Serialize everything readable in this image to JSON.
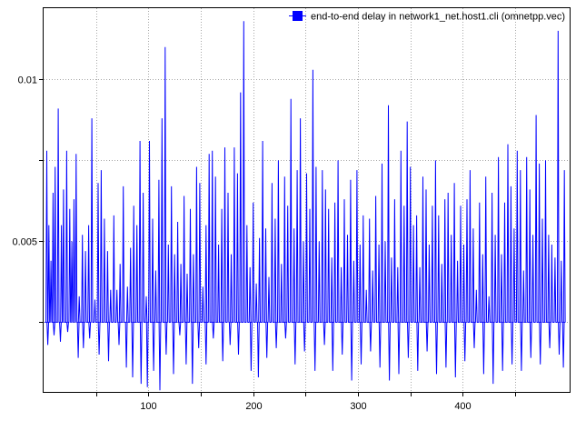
{
  "chart_data": {
    "type": "line",
    "title": "",
    "xlabel": "",
    "ylabel": "",
    "xlim": [
      0,
      502
    ],
    "ylim": [
      0.00035,
      0.0122
    ],
    "grid": true,
    "legend_position": "top-right",
    "x_ticks": [
      {
        "value": 50,
        "label": ""
      },
      {
        "value": 100,
        "label": "100"
      },
      {
        "value": 150,
        "label": ""
      },
      {
        "value": 200,
        "label": "200"
      },
      {
        "value": 250,
        "label": ""
      },
      {
        "value": 300,
        "label": "300"
      },
      {
        "value": 350,
        "label": ""
      },
      {
        "value": 400,
        "label": "400"
      },
      {
        "value": 450,
        "label": ""
      }
    ],
    "y_ticks": [
      {
        "value": 0.0025,
        "label": ""
      },
      {
        "value": 0.005,
        "label": "0.005"
      },
      {
        "value": 0.0075,
        "label": ""
      },
      {
        "value": 0.01,
        "label": "0.01"
      }
    ],
    "series": [
      {
        "name": "end-to-end delay in network1_net.host1.cli (omnetpp.vec)",
        "color": "#0000ff",
        "baseline": 0.0025,
        "x_start": 1,
        "x_end": 498,
        "spikes": [
          [
            3,
            0.0078
          ],
          [
            5,
            0.0055
          ],
          [
            7,
            0.0044
          ],
          [
            9,
            0.0065
          ],
          [
            11,
            0.0073
          ],
          [
            14,
            0.0091
          ],
          [
            17,
            0.0055
          ],
          [
            19,
            0.0066
          ],
          [
            22,
            0.0078
          ],
          [
            25,
            0.006
          ],
          [
            27,
            0.005
          ],
          [
            29,
            0.0063
          ],
          [
            31,
            0.0077
          ],
          [
            34,
            0.0033
          ],
          [
            37,
            0.0052
          ],
          [
            40,
            0.0047
          ],
          [
            43,
            0.0055
          ],
          [
            46,
            0.0088
          ],
          [
            49,
            0.0032
          ],
          [
            52,
            0.0068
          ],
          [
            55,
            0.0072
          ],
          [
            58,
            0.0057
          ],
          [
            61,
            0.0047
          ],
          [
            64,
            0.0035
          ],
          [
            67,
            0.0058
          ],
          [
            70,
            0.0035
          ],
          [
            73,
            0.0043
          ],
          [
            76,
            0.0067
          ],
          [
            80,
            0.0036
          ],
          [
            83,
            0.0048
          ],
          [
            86,
            0.0061
          ],
          [
            89,
            0.0055
          ],
          [
            92,
            0.0081
          ],
          [
            95,
            0.0065
          ],
          [
            98,
            0.0033
          ],
          [
            101,
            0.0081
          ],
          [
            104,
            0.0057
          ],
          [
            107,
            0.0041
          ],
          [
            110,
            0.0069
          ],
          [
            113,
            0.0088
          ],
          [
            116,
            0.011
          ],
          [
            119,
            0.0049
          ],
          [
            122,
            0.0067
          ],
          [
            125,
            0.0046
          ],
          [
            128,
            0.0056
          ],
          [
            131,
            0.0043
          ],
          [
            134,
            0.0064
          ],
          [
            137,
            0.004
          ],
          [
            140,
            0.006
          ],
          [
            143,
            0.0046
          ],
          [
            146,
            0.0073
          ],
          [
            149,
            0.0068
          ],
          [
            152,
            0.0036
          ],
          [
            155,
            0.0055
          ],
          [
            158,
            0.0077
          ],
          [
            161,
            0.0078
          ],
          [
            164,
            0.007
          ],
          [
            167,
            0.0049
          ],
          [
            170,
            0.006
          ],
          [
            173,
            0.0079
          ],
          [
            176,
            0.0065
          ],
          [
            179,
            0.0046
          ],
          [
            182,
            0.0079
          ],
          [
            185,
            0.0071
          ],
          [
            188,
            0.0096
          ],
          [
            191,
            0.0118
          ],
          [
            194,
            0.0055
          ],
          [
            197,
            0.0042
          ],
          [
            200,
            0.0062
          ],
          [
            203,
            0.0037
          ],
          [
            206,
            0.0051
          ],
          [
            209,
            0.0081
          ],
          [
            212,
            0.0054
          ],
          [
            215,
            0.0039
          ],
          [
            218,
            0.0068
          ],
          [
            221,
            0.0057
          ],
          [
            224,
            0.0075
          ],
          [
            227,
            0.0043
          ],
          [
            230,
            0.007
          ],
          [
            233,
            0.0061
          ],
          [
            236,
            0.0094
          ],
          [
            239,
            0.0054
          ],
          [
            242,
            0.0072
          ],
          [
            245,
            0.0088
          ],
          [
            248,
            0.005
          ],
          [
            251,
            0.0071
          ],
          [
            254,
            0.006
          ],
          [
            257,
            0.0103
          ],
          [
            260,
            0.0073
          ],
          [
            263,
            0.005
          ],
          [
            266,
            0.0072
          ],
          [
            269,
            0.0066
          ],
          [
            272,
            0.006
          ],
          [
            275,
            0.0045
          ],
          [
            278,
            0.0062
          ],
          [
            281,
            0.0075
          ],
          [
            284,
            0.0042
          ],
          [
            287,
            0.0063
          ],
          [
            290,
            0.0052
          ],
          [
            293,
            0.0069
          ],
          [
            296,
            0.0044
          ],
          [
            299,
            0.0072
          ],
          [
            302,
            0.0049
          ],
          [
            305,
            0.0058
          ],
          [
            308,
            0.0035
          ],
          [
            311,
            0.0057
          ],
          [
            314,
            0.0041
          ],
          [
            317,
            0.0064
          ],
          [
            320,
            0.0049
          ],
          [
            323,
            0.0074
          ],
          [
            326,
            0.005
          ],
          [
            329,
            0.0092
          ],
          [
            332,
            0.0045
          ],
          [
            335,
            0.0063
          ],
          [
            338,
            0.0042
          ],
          [
            341,
            0.0078
          ],
          [
            344,
            0.0061
          ],
          [
            347,
            0.0087
          ],
          [
            350,
            0.0073
          ],
          [
            353,
            0.0055
          ],
          [
            356,
            0.0058
          ],
          [
            359,
            0.0042
          ],
          [
            362,
            0.007
          ],
          [
            365,
            0.0066
          ],
          [
            368,
            0.0049
          ],
          [
            371,
            0.0061
          ],
          [
            374,
            0.0075
          ],
          [
            377,
            0.0058
          ],
          [
            380,
            0.0043
          ],
          [
            383,
            0.0063
          ],
          [
            386,
            0.0065
          ],
          [
            389,
            0.0052
          ],
          [
            392,
            0.0068
          ],
          [
            395,
            0.0044
          ],
          [
            398,
            0.0061
          ],
          [
            401,
            0.0049
          ],
          [
            404,
            0.0063
          ],
          [
            407,
            0.0072
          ],
          [
            410,
            0.0054
          ],
          [
            413,
            0.0035
          ],
          [
            416,
            0.0062
          ],
          [
            419,
            0.0046
          ],
          [
            422,
            0.007
          ],
          [
            425,
            0.0033
          ],
          [
            428,
            0.0065
          ],
          [
            431,
            0.0052
          ],
          [
            434,
            0.0076
          ],
          [
            437,
            0.0046
          ],
          [
            440,
            0.0062
          ],
          [
            443,
            0.008
          ],
          [
            446,
            0.0067
          ],
          [
            449,
            0.0054
          ],
          [
            452,
            0.0078
          ],
          [
            455,
            0.0072
          ],
          [
            458,
            0.0041
          ],
          [
            461,
            0.0076
          ],
          [
            464,
            0.0066
          ],
          [
            467,
            0.0052
          ],
          [
            470,
            0.0089
          ],
          [
            473,
            0.0074
          ],
          [
            476,
            0.0057
          ],
          [
            479,
            0.0075
          ],
          [
            482,
            0.0052
          ],
          [
            485,
            0.0049
          ],
          [
            488,
            0.0045
          ],
          [
            491,
            0.0115
          ],
          [
            494,
            0.0044
          ],
          [
            497,
            0.0072
          ]
        ],
        "dips": [
          [
            4,
            0.0018
          ],
          [
            10,
            0.0021
          ],
          [
            16,
            0.0019
          ],
          [
            23,
            0.0022
          ],
          [
            33,
            0.0014
          ],
          [
            38,
            0.0017
          ],
          [
            44,
            0.002
          ],
          [
            53,
            0.0015
          ],
          [
            62,
            0.0013
          ],
          [
            72,
            0.0018
          ],
          [
            79,
            0.0011
          ],
          [
            85,
            0.0008
          ],
          [
            93,
            0.0006
          ],
          [
            99,
            0.0005
          ],
          [
            105,
            0.001
          ],
          [
            111,
            0.0004
          ],
          [
            117,
            0.0015
          ],
          [
            124,
            0.0009
          ],
          [
            130,
            0.0021
          ],
          [
            136,
            0.0012
          ],
          [
            142,
            0.0006
          ],
          [
            148,
            0.0017
          ],
          [
            155,
            0.0012
          ],
          [
            162,
            0.002
          ],
          [
            171,
            0.0013
          ],
          [
            178,
            0.0018
          ],
          [
            186,
            0.0015
          ],
          [
            198,
            0.001
          ],
          [
            205,
            0.0008
          ],
          [
            213,
            0.0014
          ],
          [
            222,
            0.0017
          ],
          [
            231,
            0.002
          ],
          [
            240,
            0.0012
          ],
          [
            249,
            0.0016
          ],
          [
            259,
            0.001
          ],
          [
            268,
            0.0018
          ],
          [
            276,
            0.001
          ],
          [
            285,
            0.0015
          ],
          [
            294,
            0.0007
          ],
          [
            303,
            0.0012
          ],
          [
            312,
            0.0016
          ],
          [
            321,
            0.0011
          ],
          [
            330,
            0.0007
          ],
          [
            339,
            0.0009
          ],
          [
            348,
            0.0014
          ],
          [
            357,
            0.001
          ],
          [
            366,
            0.0016
          ],
          [
            375,
            0.0009
          ],
          [
            384,
            0.0011
          ],
          [
            393,
            0.0008
          ],
          [
            402,
            0.0013
          ],
          [
            411,
            0.0017
          ],
          [
            420,
            0.0009
          ],
          [
            429,
            0.0006
          ],
          [
            438,
            0.001
          ],
          [
            447,
            0.0012
          ],
          [
            456,
            0.001
          ],
          [
            465,
            0.0014
          ],
          [
            474,
            0.0012
          ],
          [
            483,
            0.0017
          ],
          [
            492,
            0.0015
          ],
          [
            496,
            0.0011
          ]
        ]
      }
    ]
  }
}
